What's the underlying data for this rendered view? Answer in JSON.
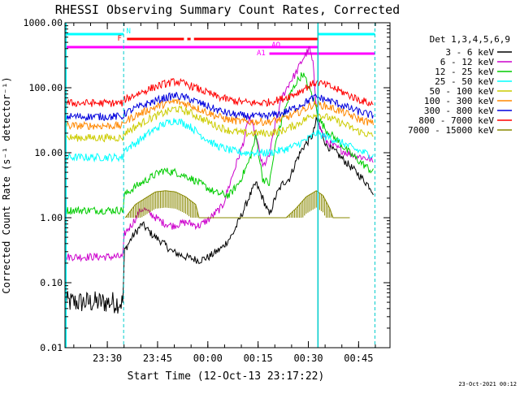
{
  "chart_data": {
    "type": "line",
    "title": "RHESSI Observing Summary Count Rates, Corrected",
    "xlabel": "Start Time (12-Oct-13 23:17:22)",
    "ylabel": "Corrected Count Rate (s⁻¹ detector⁻¹)",
    "y_scale": "log",
    "ylim": [
      0.01,
      1000
    ],
    "y_ticks": [
      "0.01",
      "0.10",
      "1.00",
      "10.00",
      "100.00",
      "1000.00"
    ],
    "xlim_minutes_after_start": [
      0,
      97
    ],
    "x_ticks": [
      "23:30",
      "23:45",
      "00:00",
      "00:15",
      "00:30",
      "00:45"
    ],
    "x_tick_minutes": [
      12.63,
      27.63,
      42.63,
      57.63,
      72.63,
      87.63
    ],
    "legend_title": "Det 1,3,4,5,6,9",
    "legend_position": "right",
    "timestamp": "23-Oct-2021 00:12",
    "night_intervals_minutes": [
      [
        0,
        17.5
      ],
      [
        75.5,
        92.5
      ]
    ],
    "flag_labels": [
      "N",
      "F",
      "AQ",
      "A1"
    ],
    "flag_bars": [
      {
        "label": "N",
        "color": "#00ffff",
        "segments": [
          [
            0,
            17.5
          ],
          [
            75.5,
            92.5
          ]
        ]
      },
      {
        "label": "F",
        "color": "#ff0000",
        "segments": [
          [
            18.5,
            35.5
          ],
          [
            36.5,
            37.5
          ],
          [
            38.5,
            75.5
          ]
        ]
      },
      {
        "label": "AQ",
        "color": "#ff00ff",
        "segments": [
          [
            0,
            75.5
          ]
        ]
      },
      {
        "label": "A1",
        "color": "#ff00ff",
        "segments": [
          [
            61,
            92.5
          ]
        ]
      }
    ],
    "series": [
      {
        "name": "3 - 6 keV",
        "color": "#000000",
        "x": [
          0,
          17.4,
          17.6,
          20,
          23,
          26,
          29,
          32,
          36,
          40,
          43,
          47,
          50,
          53,
          55,
          57,
          59,
          61,
          63,
          65,
          67,
          69,
          71,
          73,
          74,
          75,
          76,
          78,
          81,
          84,
          87,
          91,
          92
        ],
        "values": [
          0.05,
          0.05,
          0.3,
          0.5,
          0.8,
          0.55,
          0.42,
          0.3,
          0.25,
          0.22,
          0.25,
          0.35,
          0.55,
          1.2,
          2.1,
          3.4,
          2.0,
          1.1,
          2.2,
          3.4,
          4.0,
          7.5,
          12,
          16,
          19,
          32,
          25,
          13,
          10,
          7,
          5,
          3,
          2.5
        ]
      },
      {
        "name": "6 - 12 keV",
        "color": "#cc00cc",
        "x": [
          0,
          17.4,
          17.6,
          20,
          23,
          26,
          29,
          32,
          36,
          40,
          43,
          47,
          50,
          53,
          55,
          57,
          59,
          61,
          63,
          65,
          67,
          69,
          71,
          73,
          74,
          75,
          76,
          78,
          81,
          84,
          87,
          91,
          92
        ],
        "values": [
          0.25,
          0.25,
          0.55,
          0.8,
          1.4,
          1.1,
          0.85,
          0.75,
          0.85,
          0.75,
          0.95,
          1.5,
          4.5,
          13,
          35,
          18,
          6,
          9,
          32,
          75,
          120,
          170,
          280,
          400,
          230,
          55,
          25,
          15,
          12,
          10,
          9,
          8,
          7
        ]
      },
      {
        "name": "12 - 25 keV",
        "color": "#00cc00",
        "x": [
          0,
          17.4,
          17.6,
          21,
          25,
          29,
          33,
          37,
          41,
          45,
          49,
          52,
          55,
          57,
          59,
          61,
          63,
          65,
          67,
          69,
          71,
          73,
          74,
          75,
          76,
          78,
          81,
          84,
          87,
          92
        ],
        "values": [
          1.3,
          1.3,
          2.2,
          3.0,
          4.0,
          5.3,
          5.0,
          4.2,
          3.2,
          2.4,
          2.2,
          3.5,
          7.5,
          18,
          4.0,
          3.3,
          15,
          35,
          75,
          120,
          165,
          95,
          70,
          48,
          32,
          22,
          16,
          11,
          8,
          5
        ]
      },
      {
        "name": "25 - 50 keV",
        "color": "#00ffff",
        "x": [
          0,
          17.4,
          17.6,
          21,
          25,
          29,
          33,
          37,
          41,
          45,
          49,
          53,
          57,
          61,
          65,
          69,
          73,
          75,
          76,
          79,
          83,
          87,
          92
        ],
        "values": [
          8.5,
          8.5,
          11,
          14,
          20,
          27,
          32,
          26,
          18,
          13,
          11,
          10,
          10,
          10,
          11,
          13,
          17,
          20,
          19,
          17,
          14,
          11,
          9
        ]
      },
      {
        "name": "50 - 100 keV",
        "color": "#cccc00",
        "x": [
          0,
          17.4,
          17.6,
          21,
          25,
          29,
          33,
          37,
          41,
          45,
          49,
          53,
          57,
          61,
          65,
          69,
          73,
          75,
          76,
          79,
          83,
          87,
          92
        ],
        "values": [
          17,
          17,
          20,
          25,
          33,
          40,
          48,
          42,
          33,
          26,
          22,
          20,
          20,
          20,
          22,
          27,
          36,
          40,
          38,
          34,
          28,
          22,
          18
        ]
      },
      {
        "name": "100 - 300 keV",
        "color": "#ff8800",
        "x": [
          0,
          17.4,
          17.6,
          21,
          25,
          29,
          33,
          37,
          41,
          45,
          49,
          53,
          57,
          61,
          65,
          69,
          73,
          75,
          76,
          79,
          83,
          87,
          92
        ],
        "values": [
          26,
          26,
          30,
          37,
          46,
          55,
          62,
          55,
          45,
          37,
          32,
          30,
          30,
          30,
          33,
          40,
          52,
          57,
          55,
          50,
          42,
          34,
          28
        ]
      },
      {
        "name": "300 - 800 keV",
        "color": "#0000dd",
        "x": [
          0,
          17.4,
          17.6,
          21,
          25,
          29,
          33,
          37,
          41,
          45,
          49,
          53,
          57,
          61,
          65,
          69,
          73,
          75,
          76,
          79,
          83,
          87,
          92
        ],
        "values": [
          36,
          36,
          40,
          48,
          58,
          68,
          76,
          68,
          56,
          46,
          40,
          37,
          36,
          37,
          41,
          50,
          65,
          72,
          70,
          63,
          53,
          44,
          37
        ]
      },
      {
        "name": "800 - 7000 keV",
        "color": "#ff0000",
        "x": [
          0,
          17.4,
          17.6,
          21,
          25,
          29,
          33,
          37,
          41,
          45,
          49,
          53,
          57,
          61,
          65,
          69,
          73,
          75,
          76,
          79,
          83,
          87,
          92
        ],
        "values": [
          58,
          58,
          65,
          78,
          95,
          112,
          125,
          110,
          90,
          74,
          65,
          60,
          58,
          60,
          68,
          82,
          108,
          122,
          118,
          105,
          85,
          68,
          55
        ]
      },
      {
        "name": "7000 - 15000 keV",
        "color": "#888800",
        "x": [
          18,
          21,
          24,
          27,
          30,
          33,
          36,
          39,
          40,
          42,
          64,
          66,
          69,
          72,
          75,
          77,
          79,
          80,
          82,
          85
        ],
        "values": [
          1.0,
          1.6,
          2.0,
          2.5,
          2.6,
          2.5,
          2.1,
          1.6,
          1.0,
          1.0,
          1.0,
          1.0,
          1.4,
          2.1,
          2.6,
          2.2,
          1.4,
          1.0,
          1.0,
          1.0
        ]
      }
    ]
  }
}
